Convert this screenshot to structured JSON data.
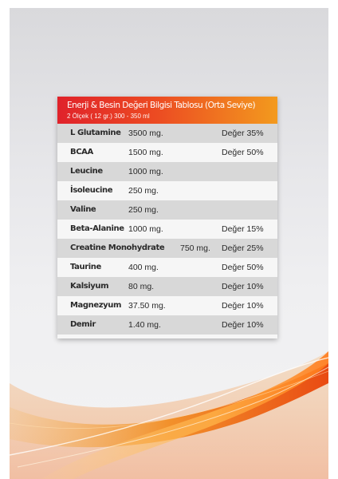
{
  "table": {
    "title": "Enerji & Besin Değeri Bilgisi Tablosu (Orta Seviye)",
    "subtitle": "2 Ölçek ( 12 gr.) 300 - 350 ml",
    "rows": [
      {
        "name": "L Glutamine",
        "amount": "3500 mg.",
        "value": "Değer 35%"
      },
      {
        "name": "BCAA",
        "amount": "1500 mg.",
        "value": "Değer 50%"
      },
      {
        "name": "Leucine",
        "amount": "1000 mg.",
        "value": ""
      },
      {
        "name": "İsoleucine",
        "amount": "250 mg.",
        "value": ""
      },
      {
        "name": "Valine",
        "amount": "250 mg.",
        "value": ""
      },
      {
        "name": "Beta-Alanine",
        "amount": "1000 mg.",
        "value": "Değer 15%"
      },
      {
        "name": "Creatine Monohydrate",
        "amount": "750 mg.",
        "value": "Değer 25%"
      },
      {
        "name": "Taurine",
        "amount": "400 mg.",
        "value": "Değer 50%"
      },
      {
        "name": "Kalsiyum",
        "amount": "80 mg.",
        "value": "Değer 10%"
      },
      {
        "name": "Magnezyum",
        "amount": "37.50 mg.",
        "value": "Değer 10%"
      },
      {
        "name": "Demir",
        "amount": "1.40 mg.",
        "value": "Değer 10%"
      }
    ]
  },
  "colors": {
    "header_start": "#e0222a",
    "header_end": "#f39a1e",
    "row_shaded": "#d8d8d8",
    "row_plain": "#f6f6f6"
  }
}
